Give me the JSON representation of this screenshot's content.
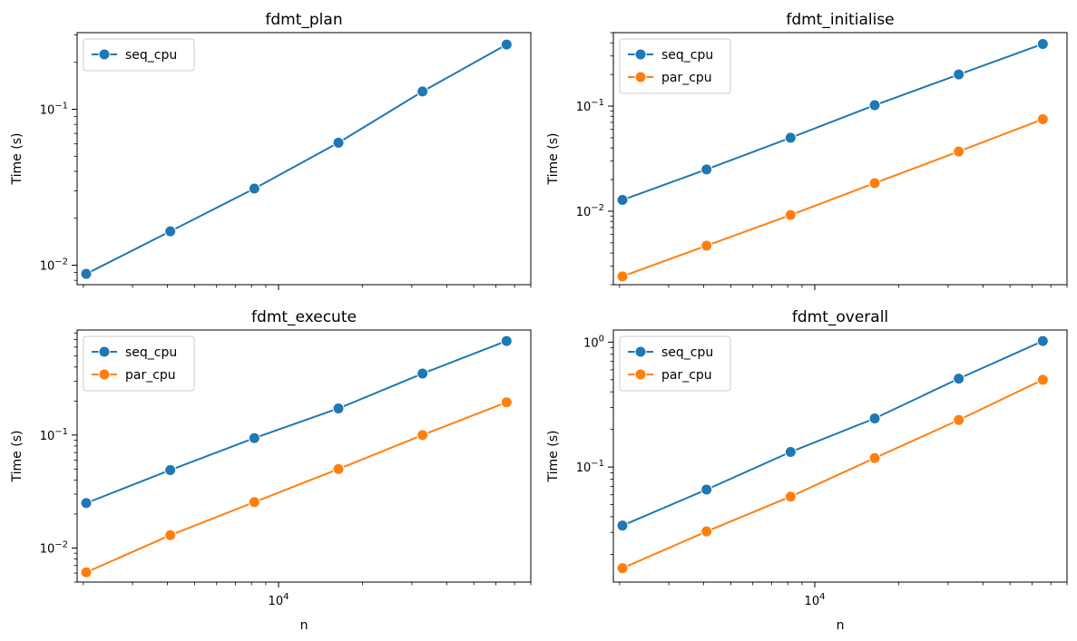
{
  "chart_data": [
    {
      "type": "line",
      "title": "fdmt_plan",
      "xlabel": "",
      "ylabel": "Time (s)",
      "xscale": "log",
      "yscale": "log",
      "xlim": [
        1900,
        80000
      ],
      "ylim": [
        0.0075,
        0.31
      ],
      "x": [
        2048,
        4096,
        8192,
        16384,
        32768,
        65536
      ],
      "yticks_major": [
        0.01,
        0.1
      ],
      "ytick_labels": [
        "10^-2",
        "10^-1"
      ],
      "xtick_labels": [],
      "legend": "upper left",
      "grid": false,
      "series": [
        {
          "name": "seq_cpu",
          "color": "#1f77b4",
          "values": [
            0.0088,
            0.0165,
            0.031,
            0.061,
            0.13,
            0.26
          ]
        }
      ]
    },
    {
      "type": "line",
      "title": "fdmt_initialise",
      "xlabel": "",
      "ylabel": "Time (s)",
      "xscale": "log",
      "yscale": "log",
      "xlim": [
        1900,
        80000
      ],
      "ylim": [
        0.002,
        0.5
      ],
      "x": [
        2048,
        4096,
        8192,
        16384,
        32768,
        65536
      ],
      "yticks_major": [
        0.01,
        0.1
      ],
      "ytick_labels": [
        "10^-2",
        "10^-1"
      ],
      "xtick_labels": [],
      "legend": "upper left",
      "grid": false,
      "series": [
        {
          "name": "seq_cpu",
          "color": "#1f77b4",
          "values": [
            0.0128,
            0.025,
            0.05,
            0.102,
            0.2,
            0.39
          ]
        },
        {
          "name": "par_cpu",
          "color": "#ff7f0e",
          "values": [
            0.0024,
            0.0047,
            0.0092,
            0.0185,
            0.037,
            0.075
          ]
        }
      ]
    },
    {
      "type": "line",
      "title": "fdmt_execute",
      "xlabel": "n",
      "ylabel": "Time (s)",
      "xscale": "log",
      "yscale": "log",
      "xlim": [
        1900,
        80000
      ],
      "ylim": [
        0.005,
        0.85
      ],
      "x": [
        2048,
        4096,
        8192,
        16384,
        32768,
        65536
      ],
      "yticks_major": [
        0.01,
        0.1
      ],
      "ytick_labels": [
        "10^-2",
        "10^-1"
      ],
      "xticks_major": [
        10000
      ],
      "xtick_labels": [
        "10^4"
      ],
      "legend": "upper left",
      "grid": false,
      "series": [
        {
          "name": "seq_cpu",
          "color": "#1f77b4",
          "values": [
            0.025,
            0.049,
            0.094,
            0.172,
            0.35,
            0.68
          ]
        },
        {
          "name": "par_cpu",
          "color": "#ff7f0e",
          "values": [
            0.0061,
            0.013,
            0.0255,
            0.05,
            0.1,
            0.195
          ]
        }
      ]
    },
    {
      "type": "line",
      "title": "fdmt_overall",
      "xlabel": "n",
      "ylabel": "Time (s)",
      "xscale": "log",
      "yscale": "log",
      "xlim": [
        1900,
        80000
      ],
      "ylim": [
        0.012,
        1.25
      ],
      "x": [
        2048,
        4096,
        8192,
        16384,
        32768,
        65536
      ],
      "yticks_major": [
        0.1,
        1
      ],
      "ytick_labels": [
        "10^-1",
        "10^0"
      ],
      "xticks_major": [
        10000
      ],
      "xtick_labels": [
        "10^4"
      ],
      "legend": "upper left",
      "grid": false,
      "series": [
        {
          "name": "seq_cpu",
          "color": "#1f77b4",
          "values": [
            0.034,
            0.066,
            0.132,
            0.245,
            0.51,
            1.02
          ]
        },
        {
          "name": "par_cpu",
          "color": "#ff7f0e",
          "values": [
            0.0155,
            0.0305,
            0.058,
            0.118,
            0.238,
            0.5
          ]
        }
      ]
    }
  ]
}
